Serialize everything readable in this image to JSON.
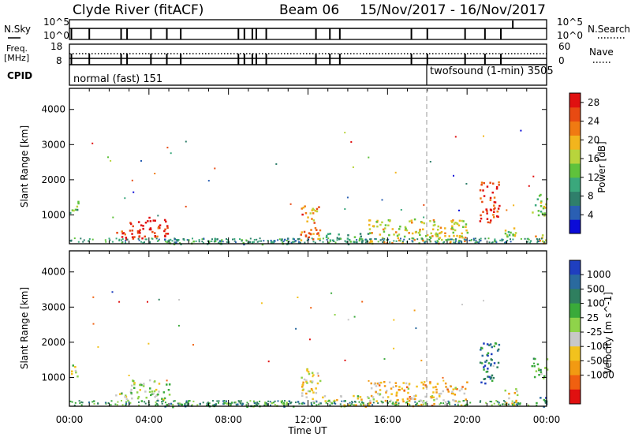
{
  "header": {
    "station": "Clyde River (fitACF)",
    "beam": "Beam 06",
    "dates": "15/Nov/2017 - 16/Nov/2017"
  },
  "status_panel": {
    "left_labels": {
      "nsky": "N.Sky",
      "freq": "Freq.",
      "mhz": "[MHz]",
      "cpid": "CPID"
    },
    "right_labels": {
      "nsearch": "N.Search",
      "nave": "Nave"
    },
    "nsky_ticks": {
      "top": "10^5",
      "bottom": "10^0"
    },
    "freq_ticks": {
      "top": "18",
      "bottom": "8"
    },
    "nave_ticks": {
      "top": "60",
      "bottom": "0"
    },
    "nsearch_ticks": {
      "top": "10^5",
      "bottom": "10^0"
    },
    "cpid_modes": [
      {
        "label": "normal (fast) 151",
        "start_hour": 0
      },
      {
        "label": "twofsound (1-min) 3505",
        "start_hour": 18
      }
    ]
  },
  "chart_data": [
    {
      "type": "heatmap",
      "title": "",
      "xlabel": "",
      "ylabel": "Slant Range [km]",
      "x_ticks": [
        "00:00",
        "04:00",
        "08:00",
        "12:00",
        "16:00",
        "20:00",
        "00:00"
      ],
      "x_range_hours": [
        0,
        24
      ],
      "ylim": [
        180,
        4600
      ],
      "y_ticks": [
        1000,
        2000,
        3000,
        4000
      ],
      "colorbar": {
        "label": "Power [dB]",
        "ticks": [
          4,
          8,
          12,
          16,
          20,
          24,
          28
        ],
        "range": [
          0,
          30
        ],
        "colors": [
          "#0b0bd8",
          "#2a5fb3",
          "#2f7f6b",
          "#3aa87c",
          "#5fc23c",
          "#b8d43c",
          "#f2b51d",
          "#f07a12",
          "#e84a12",
          "#e01010"
        ]
      },
      "echo_regions": [
        {
          "t0": 0.0,
          "t1": 0.5,
          "r0": 1050,
          "r1": 1450,
          "level": 0.45
        },
        {
          "t0": 2.3,
          "t1": 3.2,
          "r0": 300,
          "r1": 600,
          "level": 0.85
        },
        {
          "t0": 3.0,
          "t1": 5.0,
          "r0": 350,
          "r1": 950,
          "level": 0.95
        },
        {
          "t0": 4.5,
          "t1": 11.5,
          "r0": 180,
          "r1": 350,
          "level": 0.3
        },
        {
          "t0": 11.6,
          "t1": 12.6,
          "r0": 300,
          "r1": 1300,
          "level": 0.75
        },
        {
          "t0": 12.6,
          "t1": 15.0,
          "r0": 180,
          "r1": 500,
          "level": 0.35
        },
        {
          "t0": 15.0,
          "t1": 20.0,
          "r0": 200,
          "r1": 900,
          "level": 0.6
        },
        {
          "t0": 20.6,
          "t1": 21.6,
          "r0": 800,
          "r1": 2000,
          "level": 0.9
        },
        {
          "t0": 21.8,
          "t1": 22.5,
          "r0": 200,
          "r1": 700,
          "level": 0.5
        },
        {
          "t0": 23.2,
          "t1": 24.0,
          "r0": 1000,
          "r1": 1600,
          "level": 0.5
        },
        {
          "t0": 23.4,
          "t1": 24.0,
          "r0": 180,
          "r1": 450,
          "level": 0.7
        }
      ]
    },
    {
      "type": "heatmap",
      "title": "",
      "xlabel": "Time UT",
      "ylabel": "Slant Range [km]",
      "x_ticks": [
        "00:00",
        "04:00",
        "08:00",
        "12:00",
        "16:00",
        "20:00",
        "00:00"
      ],
      "x_range_hours": [
        0,
        24
      ],
      "ylim": [
        180,
        4600
      ],
      "y_ticks": [
        1000,
        2000,
        3000,
        4000
      ],
      "colorbar": {
        "label": "Velocity [m s^-1]",
        "ticks": [
          1000,
          500,
          100,
          25,
          -25,
          -100,
          -500,
          -1000
        ],
        "colors": [
          "#1f3fbf",
          "#2a6a9f",
          "#2f7f5f",
          "#3aaa3a",
          "#8fd34a",
          "#c8c8c8",
          "#f2c21d",
          "#f29a12",
          "#f06010",
          "#e01010"
        ]
      },
      "echo_regions": [
        {
          "t0": 0.0,
          "t1": 0.5,
          "r0": 1050,
          "r1": 1450,
          "level": 0.55
        },
        {
          "t0": 2.3,
          "t1": 3.2,
          "r0": 300,
          "r1": 600,
          "level": 0.5
        },
        {
          "t0": 3.0,
          "t1": 5.0,
          "r0": 350,
          "r1": 950,
          "level": 0.45
        },
        {
          "t0": 4.5,
          "t1": 11.5,
          "r0": 180,
          "r1": 350,
          "level": 0.3
        },
        {
          "t0": 11.6,
          "t1": 12.6,
          "r0": 300,
          "r1": 1300,
          "level": 0.6
        },
        {
          "t0": 12.6,
          "t1": 15.0,
          "r0": 180,
          "r1": 500,
          "level": 0.55
        },
        {
          "t0": 15.0,
          "t1": 20.0,
          "r0": 200,
          "r1": 900,
          "level": 0.65
        },
        {
          "t0": 20.6,
          "t1": 21.6,
          "r0": 800,
          "r1": 2000,
          "level": 0.2
        },
        {
          "t0": 21.8,
          "t1": 22.5,
          "r0": 200,
          "r1": 700,
          "level": 0.6
        },
        {
          "t0": 23.2,
          "t1": 24.0,
          "r0": 1000,
          "r1": 1600,
          "level": 0.4
        },
        {
          "t0": 23.4,
          "t1": 24.0,
          "r0": 180,
          "r1": 450,
          "level": 0.2
        }
      ]
    }
  ]
}
